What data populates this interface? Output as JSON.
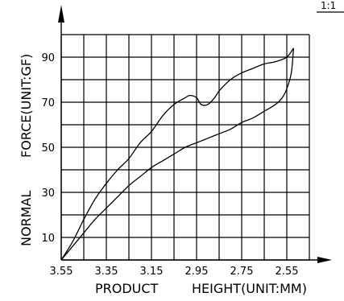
{
  "corner_label": "1:1",
  "chart_data": {
    "type": "line",
    "title": "",
    "xlabel_left": "PRODUCT",
    "xlabel_right": "HEIGHT(UNIT:MM)",
    "ylabel_left": "NORMAL",
    "ylabel_right": "FORCE(UNIT:GF)",
    "x_tick_labels": [
      "3.55",
      "3.35",
      "3.15",
      "2.95",
      "2.75",
      "2.55"
    ],
    "y_tick_labels": [
      "10",
      "30",
      "50",
      "70",
      "90"
    ],
    "x_axis_reversed": true,
    "xlim": [
      3.55,
      2.45
    ],
    "ylim": [
      0,
      100
    ],
    "grid": true,
    "series": [
      {
        "x": [
          3.55,
          3.5,
          3.45,
          3.4,
          3.35,
          3.3,
          3.25,
          3.2,
          3.15,
          3.1,
          3.05,
          3.0,
          2.98,
          2.95,
          2.93,
          2.9,
          2.87,
          2.85,
          2.8,
          2.75,
          2.7,
          2.65,
          2.6,
          2.55,
          2.52
        ],
        "values": [
          0,
          8,
          18,
          27,
          34,
          40,
          45,
          52,
          57,
          64,
          69,
          72,
          73,
          72,
          69,
          69,
          72,
          75,
          80,
          83,
          85,
          87,
          88,
          90,
          94
        ]
      },
      {
        "x": [
          3.55,
          3.5,
          3.45,
          3.4,
          3.35,
          3.3,
          3.25,
          3.2,
          3.15,
          3.1,
          3.05,
          3.0,
          2.95,
          2.9,
          2.85,
          2.8,
          2.75,
          2.7,
          2.65,
          2.6,
          2.57,
          2.55,
          2.53,
          2.52
        ],
        "values": [
          0,
          6,
          12,
          18,
          23,
          28,
          33,
          37,
          41,
          44,
          47,
          50,
          52,
          54,
          56,
          58,
          61,
          63,
          66,
          69,
          72,
          76,
          83,
          94
        ]
      }
    ]
  }
}
